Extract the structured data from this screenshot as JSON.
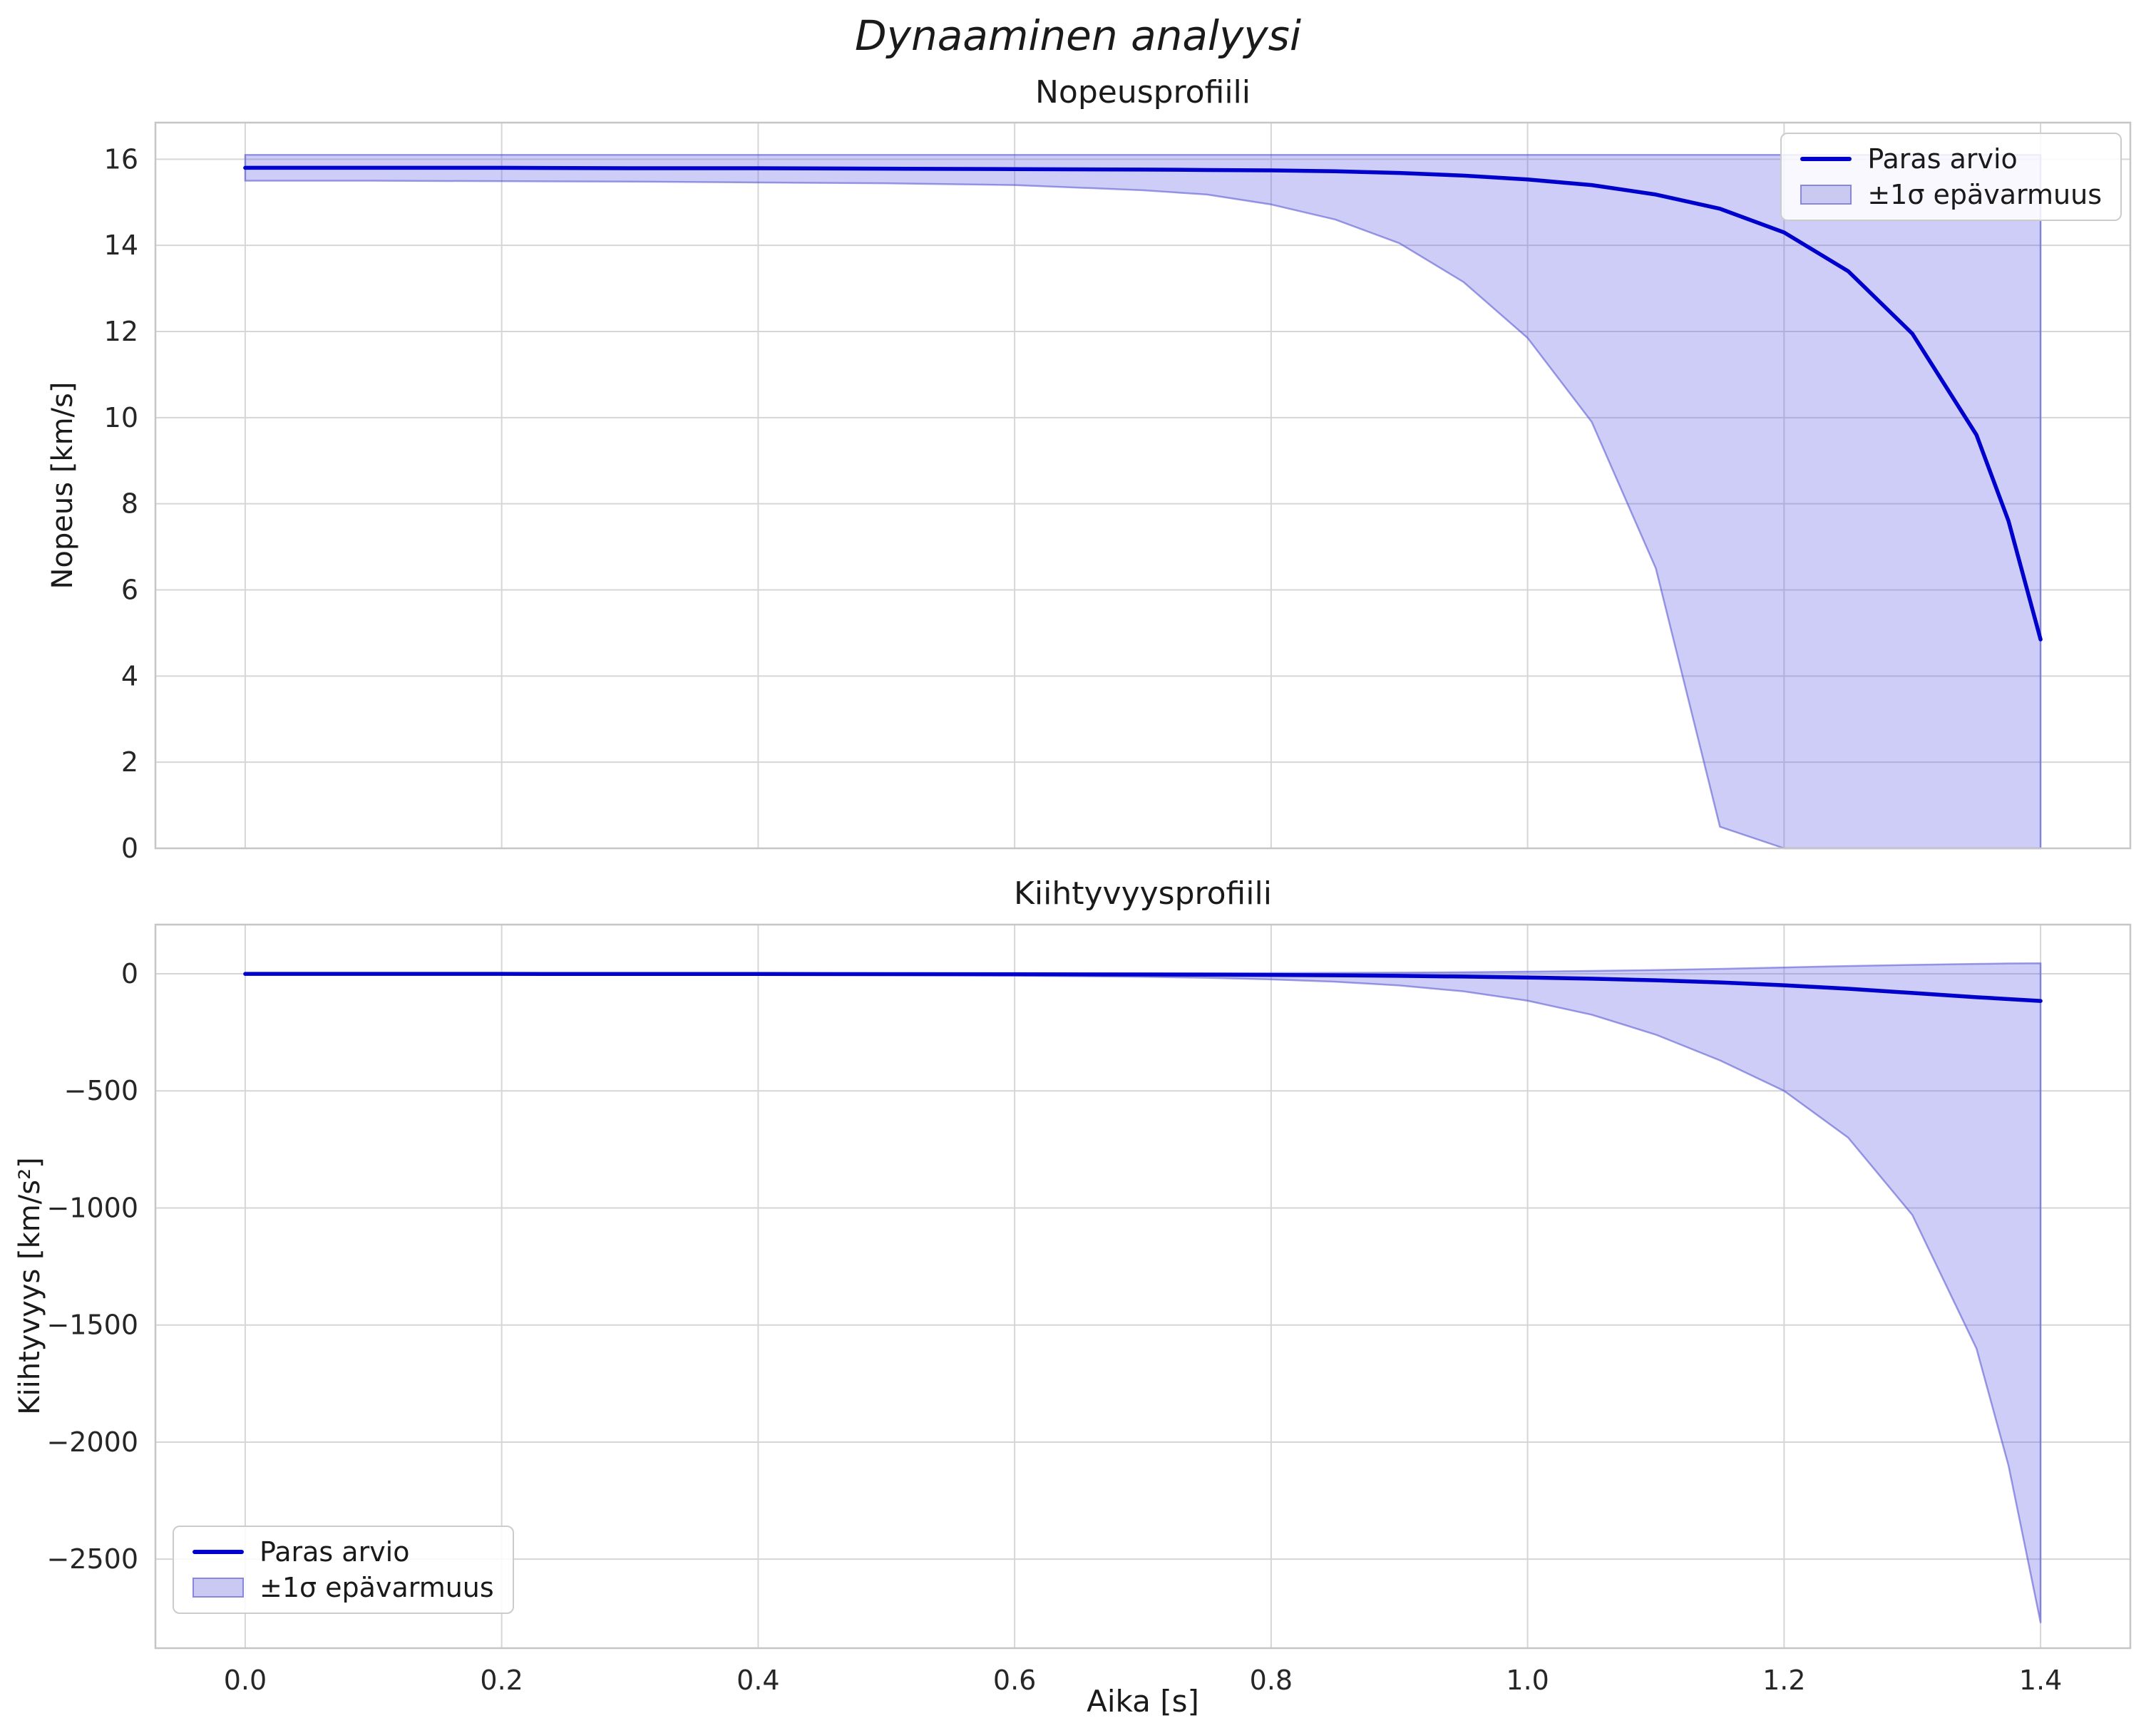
{
  "figure": {
    "title": "Dynaaminen analyysi"
  },
  "style": {
    "line_color": "#0000cc",
    "band_fill": "rgba(90,90,230,0.30)",
    "band_edge": "rgba(80,80,210,0.55)",
    "band_solid": "#c9c9f2",
    "grid_color": "#d6d6d6",
    "spine_color": "#c6c6c6",
    "text_color": "#1a1a1a",
    "tick_color": "#262626",
    "legend_border": "#cccccc"
  },
  "chart_data": [
    {
      "type": "line",
      "title": "Nopeusprofiili",
      "xlabel": "",
      "ylabel": "Nopeus [km/s]",
      "xlim": [
        -0.07,
        1.47
      ],
      "ylim": [
        0,
        16.85
      ],
      "grid": true,
      "legend_position": "upper right",
      "xticks": [
        0,
        0.2,
        0.4,
        0.6,
        0.8,
        1.0,
        1.2,
        1.4
      ],
      "xtick_labels": [
        "0.0",
        "0.2",
        "0.4",
        "0.6",
        "0.8",
        "1.0",
        "1.2",
        "1.4"
      ],
      "yticks": [
        0,
        2,
        4,
        6,
        8,
        10,
        12,
        14,
        16
      ],
      "ytick_labels": [
        "0",
        "2",
        "4",
        "6",
        "8",
        "10",
        "12",
        "14",
        "16"
      ],
      "x": [
        0,
        0.1,
        0.2,
        0.3,
        0.4,
        0.5,
        0.6,
        0.7,
        0.75,
        0.8,
        0.85,
        0.9,
        0.95,
        1.0,
        1.05,
        1.1,
        1.15,
        1.2,
        1.25,
        1.3,
        1.35,
        1.375,
        1.4
      ],
      "series": [
        {
          "name": "Paras arvio",
          "type": "line",
          "values": [
            15.8,
            15.8,
            15.8,
            15.79,
            15.79,
            15.78,
            15.77,
            15.76,
            15.75,
            15.74,
            15.72,
            15.68,
            15.62,
            15.53,
            15.4,
            15.18,
            14.85,
            14.3,
            13.4,
            11.95,
            9.6,
            7.6,
            4.85
          ]
        },
        {
          "name": "±1σ epävarmuus",
          "type": "band",
          "upper": [
            16.1,
            16.1,
            16.1,
            16.1,
            16.1,
            16.1,
            16.1,
            16.1,
            16.1,
            16.1,
            16.1,
            16.1,
            16.1,
            16.1,
            16.1,
            16.1,
            16.1,
            16.1,
            16.1,
            16.1,
            16.1,
            16.1,
            16.1
          ],
          "lower": [
            15.5,
            15.5,
            15.49,
            15.48,
            15.46,
            15.44,
            15.4,
            15.28,
            15.18,
            14.95,
            14.6,
            14.05,
            13.15,
            11.85,
            9.9,
            6.5,
            0.5,
            0,
            0,
            0,
            0,
            0,
            0
          ]
        }
      ]
    },
    {
      "type": "line",
      "title": "Kiihtyvyysprofiili",
      "xlabel": "Aika [s]",
      "ylabel": "Kiihtyvyys [km/s²]",
      "xlim": [
        -0.07,
        1.47
      ],
      "ylim": [
        -2880,
        210
      ],
      "grid": true,
      "legend_position": "lower left",
      "xticks": [
        0,
        0.2,
        0.4,
        0.6,
        0.8,
        1.0,
        1.2,
        1.4
      ],
      "xtick_labels": [
        "0.0",
        "0.2",
        "0.4",
        "0.6",
        "0.8",
        "1.0",
        "1.2",
        "1.4"
      ],
      "yticks": [
        0,
        -500,
        -1000,
        -1500,
        -2000,
        -2500
      ],
      "ytick_labels": [
        "0",
        "−500",
        "−1000",
        "−1500",
        "−2000",
        "−2500"
      ],
      "x": [
        0,
        0.1,
        0.2,
        0.3,
        0.4,
        0.5,
        0.6,
        0.7,
        0.75,
        0.8,
        0.85,
        0.9,
        0.95,
        1.0,
        1.05,
        1.1,
        1.15,
        1.2,
        1.25,
        1.3,
        1.35,
        1.375,
        1.4
      ],
      "series": [
        {
          "name": "Paras arvio",
          "type": "line",
          "values": [
            -0.5,
            -0.5,
            -0.6,
            -0.8,
            -1.0,
            -1.4,
            -2.0,
            -3.0,
            -3.8,
            -5.0,
            -6.5,
            -8.8,
            -12,
            -16,
            -21,
            -28,
            -37,
            -49,
            -64,
            -82,
            -100,
            -108,
            -116
          ]
        },
        {
          "name": "±1σ epävarmuus",
          "type": "band",
          "upper": [
            0.5,
            0.5,
            0.5,
            0.6,
            0.8,
            1.0,
            1.3,
            1.8,
            2.2,
            2.8,
            3.6,
            4.8,
            6.5,
            9,
            12,
            16,
            21,
            27,
            33,
            38,
            42,
            44,
            45
          ],
          "lower": [
            -2,
            -2,
            -2.4,
            -3,
            -4,
            -5.5,
            -8,
            -13,
            -17,
            -24,
            -34,
            -50,
            -75,
            -115,
            -175,
            -260,
            -370,
            -500,
            -700,
            -1030,
            -1600,
            -2100,
            -2770
          ]
        }
      ]
    }
  ]
}
